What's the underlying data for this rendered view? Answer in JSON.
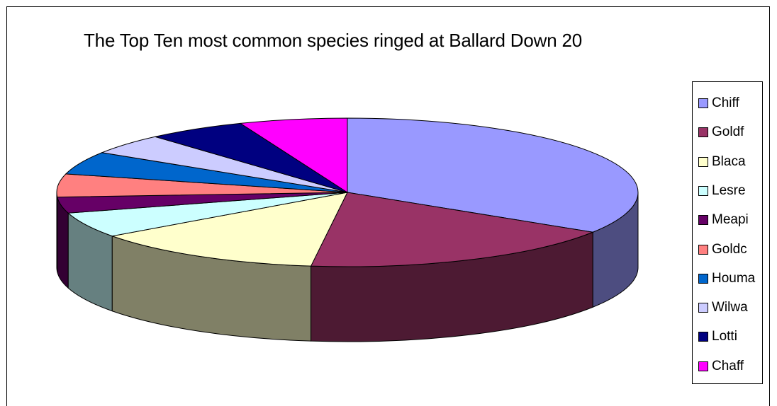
{
  "chart_data": {
    "type": "pie",
    "title": "The Top Ten most common species ringed at Ballard Down 20",
    "categories": [
      "Chiff",
      "Goldf",
      "Blaca",
      "Lesre",
      "Meapi",
      "Goldc",
      "Houma",
      "Wilwa",
      "Lotti",
      "Chaff"
    ],
    "values": [
      34,
      18,
      13,
      5.5,
      3.5,
      5,
      5,
      4.5,
      5.5,
      6
    ],
    "colors": [
      "#9999ff",
      "#993366",
      "#ffffcc",
      "#ccffff",
      "#660066",
      "#ff8080",
      "#0066cc",
      "#ccccff",
      "#000080",
      "#ff00ff"
    ],
    "side_colors": [
      "#4d4d80",
      "#4d1a33",
      "#808066",
      "#668080",
      "#330033",
      "#804040",
      "#003366",
      "#666680",
      "#000040",
      "#800080"
    ],
    "legend_position": "right",
    "style": "3d"
  }
}
